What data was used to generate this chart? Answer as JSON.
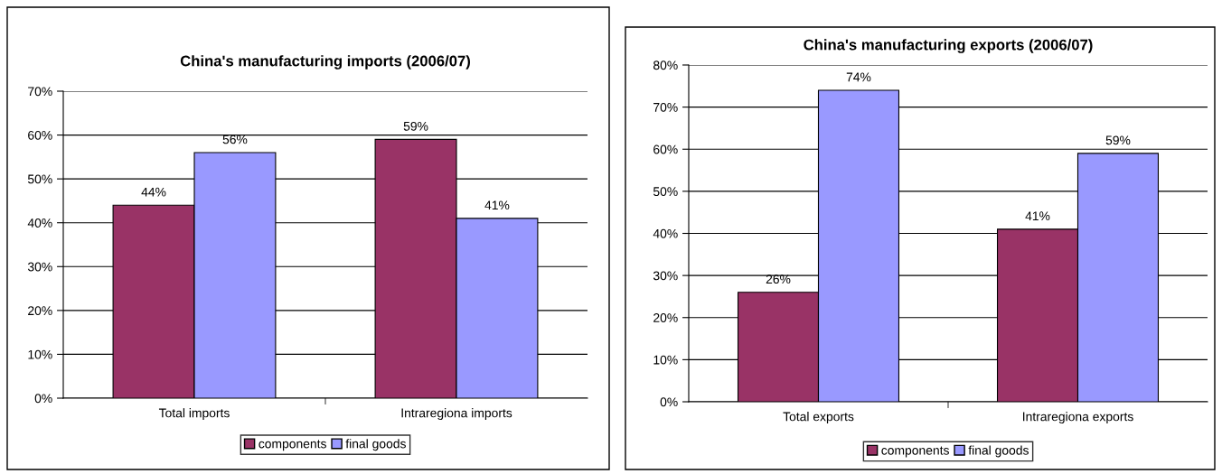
{
  "chart_data": [
    {
      "type": "bar",
      "title": "China's manufacturing imports (2006/07)",
      "categories": [
        "Total imports",
        "Intraregiona imports"
      ],
      "series": [
        {
          "name": "components",
          "color": "#993366",
          "values": [
            44,
            59
          ],
          "value_labels": [
            "44%",
            "59%"
          ]
        },
        {
          "name": "final goods",
          "color": "#9999ff",
          "values": [
            56,
            41
          ],
          "value_labels": [
            "56%",
            "41%"
          ]
        }
      ],
      "ylim": [
        0,
        70
      ],
      "yticks": [
        {
          "value": 0,
          "label": "0%"
        },
        {
          "value": 10,
          "label": "10%"
        },
        {
          "value": 20,
          "label": "20%"
        },
        {
          "value": 30,
          "label": "30%"
        },
        {
          "value": 40,
          "label": "40%"
        },
        {
          "value": 50,
          "label": "50%"
        },
        {
          "value": 60,
          "label": "60%"
        },
        {
          "value": 70,
          "label": "70%"
        }
      ],
      "grid": "y",
      "legend": "bottom"
    },
    {
      "type": "bar",
      "title": "China's manufacturing exports (2006/07)",
      "categories": [
        "Total exports",
        "Intraregiona exports"
      ],
      "series": [
        {
          "name": "components",
          "color": "#993366",
          "values": [
            26,
            41
          ],
          "value_labels": [
            "26%",
            "41%"
          ]
        },
        {
          "name": "final goods",
          "color": "#9999ff",
          "values": [
            74,
            59
          ],
          "value_labels": [
            "74%",
            "59%"
          ]
        }
      ],
      "ylim": [
        0,
        80
      ],
      "yticks": [
        {
          "value": 0,
          "label": "0%"
        },
        {
          "value": 10,
          "label": "10%"
        },
        {
          "value": 20,
          "label": "20%"
        },
        {
          "value": 30,
          "label": "30%"
        },
        {
          "value": 40,
          "label": "40%"
        },
        {
          "value": 50,
          "label": "50%"
        },
        {
          "value": 60,
          "label": "60%"
        },
        {
          "value": 70,
          "label": "70%"
        },
        {
          "value": 80,
          "label": "80%"
        }
      ],
      "grid": "y",
      "legend": "bottom"
    }
  ]
}
